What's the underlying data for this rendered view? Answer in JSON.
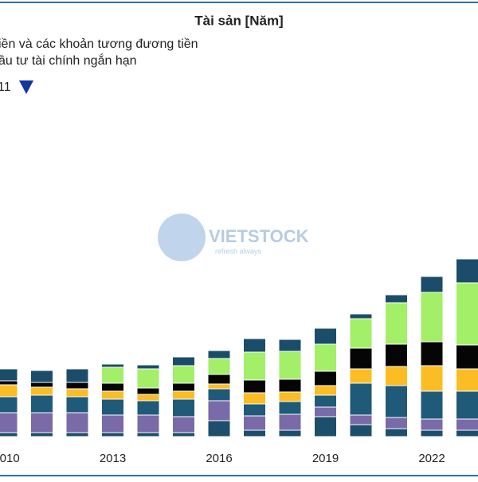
{
  "chart_data": {
    "type": "stacked_bar",
    "title": "Tài sản [Năm]",
    "legend_page": "11",
    "watermark": "VIETSTOCK",
    "watermark_tagline": "refresh always",
    "categories": [
      2010,
      null,
      null,
      2013,
      null,
      null,
      2016,
      null,
      null,
      2019,
      null,
      null,
      2022,
      null
    ],
    "ylim": [
      0,
      300
    ],
    "series": [
      {
        "name": "iền và các khoản tương đương tiền",
        "color": "#1c4f6b",
        "values": [
          5,
          5,
          5,
          5,
          5,
          5,
          20,
          8,
          8,
          25,
          15,
          10,
          8,
          8
        ]
      },
      {
        "name": "ầu tư tài chính ngắn hạn",
        "color": "#7a6aa8",
        "values": [
          25,
          25,
          25,
          22,
          22,
          20,
          25,
          18,
          20,
          12,
          12,
          14,
          14,
          14
        ]
      },
      {
        "color": "#1f5a78",
        "values": [
          20,
          22,
          20,
          20,
          18,
          22,
          15,
          15,
          16,
          15,
          40,
          40,
          35,
          35
        ]
      },
      {
        "color": "#fbbd23",
        "values": [
          15,
          10,
          10,
          10,
          8,
          10,
          6,
          14,
          12,
          12,
          18,
          24,
          32,
          28
        ]
      },
      {
        "color": "#050505",
        "values": [
          5,
          6,
          8,
          10,
          8,
          10,
          12,
          16,
          16,
          18,
          26,
          28,
          30,
          30
        ]
      },
      {
        "color": "#a3ef68",
        "values": [
          0,
          0,
          0,
          20,
          24,
          22,
          20,
          35,
          35,
          34,
          37,
          52,
          62,
          78
        ]
      },
      {
        "color": "#1b4d6a",
        "values": [
          15,
          15,
          17,
          4,
          5,
          11,
          10,
          17,
          15,
          20,
          6,
          10,
          20,
          30
        ]
      }
    ]
  }
}
